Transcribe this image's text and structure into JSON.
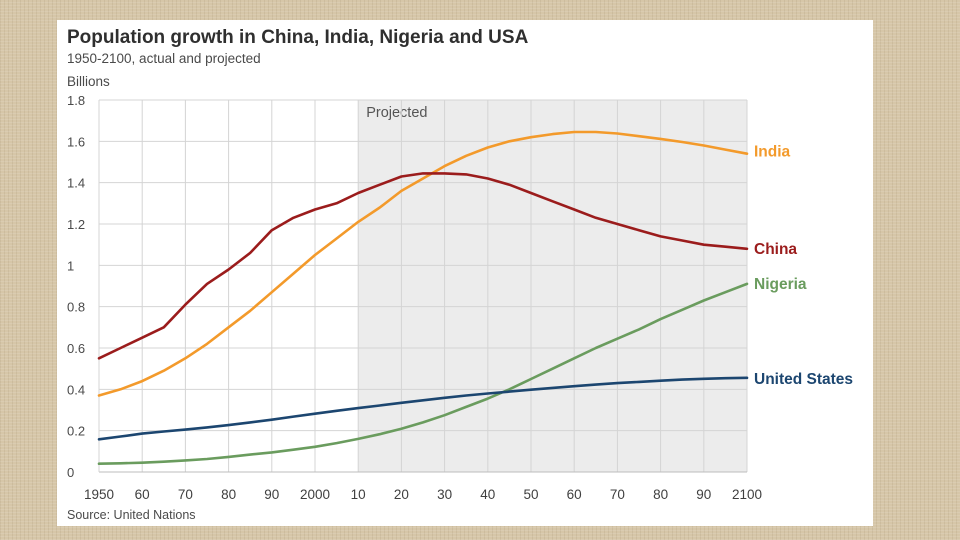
{
  "chart_data": {
    "type": "line",
    "title": "Population growth in China, India, Nigeria and USA",
    "subtitle": "1950-2100, actual and projected",
    "ylabel": "Billions",
    "source": "Source: United Nations",
    "projected_label": "Projected",
    "projected_range": [
      2010,
      2100
    ],
    "xlim": [
      1950,
      2100
    ],
    "ylim": [
      0,
      1.8
    ],
    "grid": true,
    "x_ticks": [
      1950,
      1960,
      1970,
      1980,
      1990,
      2000,
      2010,
      2020,
      2030,
      2040,
      2050,
      2060,
      2070,
      2080,
      2090,
      2100
    ],
    "x_tick_labels": [
      "1950",
      "60",
      "70",
      "80",
      "90",
      "2000",
      "10",
      "20",
      "30",
      "40",
      "50",
      "60",
      "70",
      "80",
      "90",
      "2100"
    ],
    "y_ticks": [
      0,
      0.2,
      0.4,
      0.6,
      0.8,
      1,
      1.2,
      1.4,
      1.6,
      1.8
    ],
    "y_tick_labels": [
      "0",
      "0.2",
      "0.4",
      "0.6",
      "0.8",
      "1",
      "1.2",
      "1.4",
      "1.6",
      "1.8"
    ],
    "legend_placement": "direct labels at right end of lines",
    "x": [
      1950,
      1955,
      1960,
      1965,
      1970,
      1975,
      1980,
      1985,
      1990,
      1995,
      2000,
      2005,
      2010,
      2015,
      2020,
      2025,
      2030,
      2035,
      2040,
      2045,
      2050,
      2055,
      2060,
      2065,
      2070,
      2075,
      2080,
      2085,
      2090,
      2095,
      2100
    ],
    "series": [
      {
        "name": "India",
        "color": "#f39a2b",
        "label_at": 1.55,
        "values": [
          0.37,
          0.4,
          0.44,
          0.49,
          0.55,
          0.62,
          0.7,
          0.78,
          0.87,
          0.96,
          1.05,
          1.13,
          1.21,
          1.28,
          1.36,
          1.42,
          1.48,
          1.53,
          1.57,
          1.6,
          1.62,
          1.635,
          1.645,
          1.645,
          1.638,
          1.625,
          1.612,
          1.597,
          1.58,
          1.56,
          1.54
        ]
      },
      {
        "name": "China",
        "color": "#9b1c1c",
        "label_at": 1.08,
        "values": [
          0.55,
          0.6,
          0.65,
          0.7,
          0.81,
          0.91,
          0.98,
          1.06,
          1.17,
          1.23,
          1.27,
          1.3,
          1.35,
          1.39,
          1.43,
          1.445,
          1.445,
          1.44,
          1.42,
          1.39,
          1.35,
          1.31,
          1.27,
          1.23,
          1.2,
          1.17,
          1.14,
          1.12,
          1.1,
          1.09,
          1.08
        ]
      },
      {
        "name": "Nigeria",
        "color": "#6a9c5e",
        "label_at": 0.91,
        "values": [
          0.04,
          0.042,
          0.045,
          0.05,
          0.056,
          0.063,
          0.073,
          0.084,
          0.095,
          0.108,
          0.122,
          0.14,
          0.16,
          0.183,
          0.209,
          0.24,
          0.275,
          0.315,
          0.355,
          0.4,
          0.45,
          0.5,
          0.55,
          0.6,
          0.645,
          0.69,
          0.74,
          0.785,
          0.83,
          0.87,
          0.91
        ]
      },
      {
        "name": "United States",
        "color": "#1c4670",
        "label_at": 0.45,
        "values": [
          0.158,
          0.172,
          0.186,
          0.196,
          0.205,
          0.216,
          0.227,
          0.24,
          0.253,
          0.268,
          0.282,
          0.296,
          0.309,
          0.322,
          0.335,
          0.347,
          0.359,
          0.37,
          0.38,
          0.389,
          0.398,
          0.407,
          0.415,
          0.423,
          0.43,
          0.436,
          0.442,
          0.447,
          0.451,
          0.454,
          0.456
        ]
      }
    ]
  }
}
